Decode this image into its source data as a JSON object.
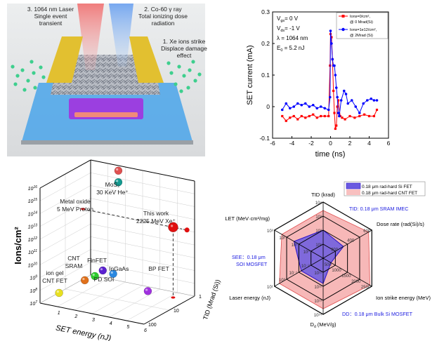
{
  "panel_a": {
    "label_laser": [
      "3. 1064 nm Laser",
      "Single event",
      "transient"
    ],
    "label_gamma": [
      "2. Co-60 γ ray",
      "Total ionizing dose",
      "radiation"
    ],
    "label_xe": [
      "1. Xe ions strike",
      "Displace damage",
      "effect"
    ],
    "colors": {
      "electrode": "#d9b62a",
      "substrate": "#3d9de6",
      "gate": "#9b3fe0",
      "ions": "#3ecf8e",
      "laser_beam": "#f08080",
      "gamma_beam": "#7fb2f0"
    }
  },
  "chart_data": [
    {
      "type": "line",
      "xlabel": "time (ns)",
      "ylabel": "SET current (mA)",
      "xlim": [
        -6,
        6
      ],
      "ylim": [
        -0.1,
        0.3
      ],
      "xticks": [
        "-6",
        "-4",
        "-2",
        "0",
        "2",
        "4",
        "6"
      ],
      "yticks": [
        "0.3",
        "0.2",
        "0.1",
        "0",
        "-0.1"
      ],
      "annotations": [
        "V<sub>gs</sub>=  0 V",
        "V<sub>ds</sub>= -1 V",
        "λ   = 1064 nm",
        "E<sub>0</sub> =  5.2 nJ"
      ],
      "annotation_text": {
        "vgs": "V",
        "vgs_sub": "gs",
        "vgs_val": "=  0 V",
        "vds": "V",
        "vds_sub": "ds",
        "vds_val": "= -1 V",
        "lambda": "λ   = 1064 nm",
        "e0": "E",
        "e0_sub": "0",
        "e0_val": " =  5.2 nJ"
      },
      "legend_position": "top-right",
      "series": [
        {
          "name": "Ions=0/cm², @ 0 Mrad(Si)",
          "legend": [
            "Ions=0/cm²,",
            "@ 0 Mrad(Si)"
          ],
          "color": "#ff0000",
          "marker": "square",
          "x": [
            -5,
            -4.6,
            -4.2,
            -3.8,
            -3.4,
            -3,
            -2.6,
            -2.2,
            -1.8,
            -1.4,
            -1,
            -0.6,
            -0.2,
            -0.05,
            0,
            0.1,
            0.2,
            0.3,
            0.4,
            0.5,
            0.6,
            0.7,
            0.8,
            1,
            1.2,
            1.5,
            2,
            2.5,
            3,
            3.5,
            4,
            4.5,
            4.8
          ],
          "y": [
            -0.03,
            -0.045,
            -0.035,
            -0.03,
            -0.04,
            -0.03,
            -0.035,
            -0.03,
            -0.025,
            -0.035,
            -0.03,
            -0.03,
            -0.03,
            0.13,
            0.23,
            0.22,
            0.15,
            0.05,
            -0.02,
            -0.07,
            -0.06,
            0.0,
            0.02,
            -0.03,
            -0.035,
            -0.04,
            -0.03,
            -0.035,
            -0.03,
            -0.025,
            -0.03,
            -0.03,
            -0.01
          ]
        },
        {
          "name": "Ions=1e12/cm², @ 2Mrad (Si)",
          "legend": [
            "Ions=1e12/cm²,",
            "@ 2Mrad (Si)"
          ],
          "color": "#0000ff",
          "marker": "circle",
          "x": [
            -5,
            -4.6,
            -4.2,
            -3.8,
            -3.4,
            -3,
            -2.6,
            -2.2,
            -1.8,
            -1.4,
            -1,
            -0.6,
            -0.2,
            -0.05,
            0,
            0.1,
            0.2,
            0.3,
            0.4,
            0.5,
            0.6,
            0.7,
            0.8,
            0.9,
            1.1,
            1.4,
            1.6,
            1.8,
            2.2,
            2.6,
            3,
            3.4,
            3.8,
            4.2,
            4.5,
            4.8
          ],
          "y": [
            -0.01,
            0.01,
            -0.005,
            0.0,
            0.01,
            0.005,
            0.01,
            0.0,
            0.005,
            -0.005,
            0.0,
            -0.005,
            -0.01,
            0.03,
            0.24,
            0.2,
            0.15,
            0.13,
            0.13,
            0.1,
            0.06,
            0.03,
            -0.02,
            -0.03,
            0.02,
            0.05,
            0.04,
            0.01,
            0.02,
            0.0,
            -0.02,
            0.01,
            0.02,
            0.025,
            0.02,
            0.02
          ]
        }
      ]
    },
    {
      "type": "scatter3d",
      "xlabel": "SET energy (nJ)",
      "ylabel": "TID (Mrad (Si))",
      "zlabel": "Ions/cm²",
      "xlim": [
        0,
        6
      ],
      "ylim": [
        100,
        1
      ],
      "zlim": [
        10000000.0,
        1e+16
      ],
      "xticks": [
        "1",
        "2",
        "3",
        "4",
        "5",
        "6"
      ],
      "yticks": [
        "1",
        "10",
        "100"
      ],
      "zticks_exp": [
        "7",
        "8",
        "9",
        "10",
        "11",
        "12",
        "13",
        "14",
        "15",
        "16"
      ],
      "points": [
        {
          "label": [
            "ion gel",
            "CNT FET"
          ],
          "energy": 1.1,
          "tid": 100,
          "fluence_exp": 8.1,
          "color": "#e8e020"
        },
        {
          "label": [
            "CNT",
            "SRAM"
          ],
          "energy": 2.0,
          "tid": 40,
          "fluence_exp": 8.9,
          "color": "#e0701a"
        },
        {
          "label": [
            "PD SOI"
          ],
          "energy": 2.4,
          "tid": 30,
          "fluence_exp": 9.2,
          "color": "#2ccc2c"
        },
        {
          "label": [
            "FinFET"
          ],
          "energy": 2.6,
          "tid": 20,
          "fluence_exp": 9.5,
          "color": "#5a20d0"
        },
        {
          "label": [
            "InGaAs"
          ],
          "energy": 3.2,
          "tid": 20,
          "fluence_exp": 9.4,
          "color": "#2a88e0"
        },
        {
          "label": [
            "BP FET"
          ],
          "energy": 5.2,
          "tid": 20,
          "fluence_exp": 8.6,
          "color": "#a030e0"
        },
        {
          "label": [
            "Metal oxide",
            "5 MeV Proton"
          ],
          "energy": 1.6,
          "tid": 1,
          "fluence_exp": 14.7,
          "color": "#139a90"
        },
        {
          "label": [
            "MoS₂",
            "30 KeV He⁺"
          ],
          "energy": 1.6,
          "tid": 1,
          "fluence_exp": 15.6,
          "color": "#e05050"
        },
        {
          "label": [
            "This work",
            "2225 MeV Xe⁺"
          ],
          "energy": 5.2,
          "tid": 2,
          "fluence_exp": 12.5,
          "color": "#e01010",
          "highlight": true
        }
      ]
    },
    {
      "type": "radar",
      "legend_position": "top-right",
      "axes": [
        {
          "name": "TID (krad)",
          "scale": "log",
          "min": 0,
          "max": 4,
          "ticks": [
            "10¹",
            "10²",
            "10³",
            "10⁴"
          ]
        },
        {
          "name": "Dose rate (rad(Si)/s)",
          "scale": "linear",
          "min": 0,
          "max": 600,
          "ticks": [
            "200",
            "400",
            "600"
          ]
        },
        {
          "name": "Ion strike energy (MeV)",
          "scale": "linear",
          "min": 0,
          "max": 2500,
          "ticks": [
            "500",
            "1000",
            "1500",
            "2000",
            "2500"
          ]
        },
        {
          "name": "D<sub>d</sub>",
          "label": "Dd (MeV/g)",
          "scale": "log",
          "min": 10,
          "max": 14,
          "ticks": [
            "10¹¹",
            "10¹²",
            "10¹³",
            "10¹⁴"
          ]
        },
        {
          "name": "Laser energy (nJ)",
          "scale": "log",
          "min": -3,
          "max": 1,
          "ticks": [
            "10⁻²",
            "10⁻¹",
            "10⁰",
            "10¹"
          ]
        },
        {
          "name": "LET (MeV·cm²/mg)",
          "scale": "log",
          "min": -1,
          "max": 3,
          "ticks": [
            "10⁰",
            "10¹",
            "10²",
            "10³"
          ]
        }
      ],
      "series": [
        {
          "name": "0.18 μm rad-hard CNT FET",
          "color": "#f4a0a0",
          "stroke": "#e05050",
          "values": [
            3.4,
            560,
            2400,
            13.6,
            0.6,
            2.4
          ]
        },
        {
          "name": "0.18 μm rad-hard Si FET",
          "color": "#6a5ae0",
          "stroke": "#2a10c8",
          "values": [
            2.0,
            250,
            400,
            11.8,
            -1.2,
            1.4
          ]
        }
      ],
      "annotations": [
        "TID: 0.18 μm SRAM IMEC",
        "SEE：0.18 μm",
        "SOI MOSFET",
        "DD：0.18 μm Bulk Si MOSFET"
      ],
      "annotation_color": "#2020e0"
    }
  ]
}
